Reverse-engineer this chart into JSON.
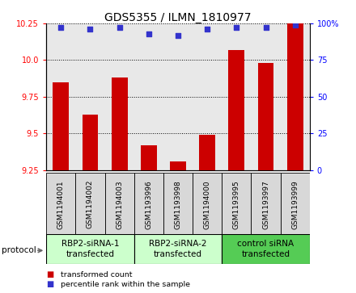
{
  "title": "GDS5355 / ILMN_1810977",
  "samples": [
    "GSM1194001",
    "GSM1194002",
    "GSM1194003",
    "GSM1193996",
    "GSM1193998",
    "GSM1194000",
    "GSM1193995",
    "GSM1193997",
    "GSM1193999"
  ],
  "bar_values": [
    9.85,
    9.63,
    9.88,
    9.42,
    9.31,
    9.49,
    10.07,
    9.98,
    10.25
  ],
  "percentile_values": [
    97,
    96,
    97,
    93,
    92,
    96,
    97,
    97,
    99
  ],
  "bar_color": "#cc0000",
  "dot_color": "#3333cc",
  "ylim_left": [
    9.25,
    10.25
  ],
  "ylim_right": [
    0,
    100
  ],
  "yticks_left": [
    9.25,
    9.5,
    9.75,
    10.0,
    10.25
  ],
  "yticks_right": [
    0,
    25,
    50,
    75,
    100
  ],
  "ytick_labels_right": [
    "0",
    "25",
    "50",
    "75",
    "100%"
  ],
  "groups": [
    {
      "label": "RBP2-siRNA-1\ntransfected",
      "start": 0,
      "end": 3,
      "color": "#ccffcc"
    },
    {
      "label": "RBP2-siRNA-2\ntransfected",
      "start": 3,
      "end": 6,
      "color": "#ccffcc"
    },
    {
      "label": "control siRNA\ntransfected",
      "start": 6,
      "end": 9,
      "color": "#55cc55"
    }
  ],
  "legend_items": [
    {
      "color": "#cc0000",
      "label": "transformed count"
    },
    {
      "color": "#3333cc",
      "label": "percentile rank within the sample"
    }
  ],
  "protocol_label": "protocol",
  "background_color": "#ffffff",
  "plot_bg_color": "#e8e8e8",
  "bar_width": 0.55,
  "title_fontsize": 10,
  "tick_fontsize": 7,
  "label_fontsize": 7.5,
  "sample_fontsize": 6.5
}
